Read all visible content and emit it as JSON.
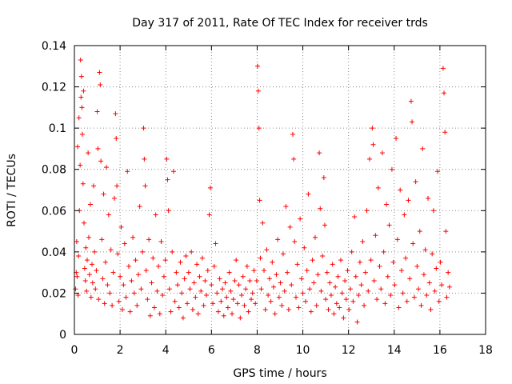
{
  "chart_data": {
    "type": "scatter",
    "title": "Day 317 of 2011, Rate Of TEC Index for receiver trds",
    "xlabel": "GPS time / hours",
    "ylabel": "ROTI / TECUs",
    "xlim": [
      0,
      18
    ],
    "ylim": [
      0,
      0.14
    ],
    "x_ticks": [
      0,
      2,
      4,
      6,
      8,
      10,
      12,
      14,
      16,
      18
    ],
    "y_ticks": [
      0,
      0.02,
      0.04,
      0.06,
      0.08,
      0.1,
      0.12,
      0.14
    ],
    "x_tick_labels": [
      "0",
      "2",
      "4",
      "6",
      "8",
      "10",
      "12",
      "14",
      "16",
      "18"
    ],
    "y_tick_labels": [
      "0",
      "0.02",
      "0.04",
      "0.06",
      "0.08",
      "0.1",
      "0.12",
      "0.14"
    ],
    "grid": true,
    "marker": "+",
    "color": "#ff0000",
    "series": [
      {
        "values": [
          [
            0.05,
            0.022
          ],
          [
            0.08,
            0.03
          ],
          [
            0.1,
            0.045
          ],
          [
            0.12,
            0.028
          ],
          [
            0.14,
            0.091
          ],
          [
            0.16,
            0.019
          ],
          [
            0.18,
            0.038
          ],
          [
            0.2,
            0.105
          ],
          [
            0.22,
            0.06
          ],
          [
            0.25,
            0.082
          ],
          [
            0.27,
            0.133
          ],
          [
            0.29,
            0.115
          ],
          [
            0.31,
            0.125
          ],
          [
            0.33,
            0.11
          ],
          [
            0.35,
            0.097
          ],
          [
            0.38,
            0.073
          ],
          [
            0.4,
            0.118
          ],
          [
            0.42,
            0.054
          ],
          [
            0.45,
            0.032
          ],
          [
            0.48,
            0.026
          ],
          [
            0.5,
            0.042
          ],
          [
            0.53,
            0.021
          ],
          [
            0.56,
            0.036
          ],
          [
            0.6,
            0.088
          ],
          [
            0.63,
            0.047
          ],
          [
            0.66,
            0.029
          ],
          [
            0.7,
            0.063
          ],
          [
            0.73,
            0.018
          ],
          [
            0.77,
            0.034
          ],
          [
            0.8,
            0.025
          ],
          [
            0.84,
            0.072
          ],
          [
            0.88,
            0.04
          ],
          [
            0.92,
            0.022
          ],
          [
            0.96,
            0.031
          ],
          [
            1.0,
            0.108
          ],
          [
            1.03,
            0.09
          ],
          [
            1.06,
            0.017
          ],
          [
            1.1,
            0.127
          ],
          [
            1.13,
            0.121
          ],
          [
            1.16,
            0.084
          ],
          [
            1.2,
            0.046
          ],
          [
            1.24,
            0.027
          ],
          [
            1.28,
            0.068
          ],
          [
            1.32,
            0.015
          ],
          [
            1.36,
            0.035
          ],
          [
            1.4,
            0.081
          ],
          [
            1.45,
            0.024
          ],
          [
            1.5,
            0.058
          ],
          [
            1.55,
            0.02
          ],
          [
            1.6,
            0.041
          ],
          [
            1.65,
            0.014
          ],
          [
            1.7,
            0.03
          ],
          [
            1.75,
            0.066
          ],
          [
            1.8,
            0.107
          ],
          [
            1.83,
            0.095
          ],
          [
            1.86,
            0.072
          ],
          [
            1.9,
            0.039
          ],
          [
            1.95,
            0.016
          ],
          [
            2.0,
            0.028
          ],
          [
            2.05,
            0.052
          ],
          [
            2.1,
            0.012
          ],
          [
            2.15,
            0.024
          ],
          [
            2.2,
            0.044
          ],
          [
            2.26,
            0.018
          ],
          [
            2.32,
            0.079
          ],
          [
            2.38,
            0.033
          ],
          [
            2.44,
            0.011
          ],
          [
            2.5,
            0.026
          ],
          [
            2.56,
            0.047
          ],
          [
            2.62,
            0.02
          ],
          [
            2.68,
            0.036
          ],
          [
            2.74,
            0.014
          ],
          [
            2.8,
            0.029
          ],
          [
            2.86,
            0.062
          ],
          [
            2.92,
            0.022
          ],
          [
            2.98,
            0.04
          ],
          [
            3.03,
            0.1
          ],
          [
            3.06,
            0.085
          ],
          [
            3.1,
            0.072
          ],
          [
            3.14,
            0.031
          ],
          [
            3.2,
            0.017
          ],
          [
            3.26,
            0.046
          ],
          [
            3.32,
            0.009
          ],
          [
            3.38,
            0.025
          ],
          [
            3.44,
            0.037
          ],
          [
            3.5,
            0.013
          ],
          [
            3.56,
            0.058
          ],
          [
            3.62,
            0.021
          ],
          [
            3.68,
            0.033
          ],
          [
            3.74,
            0.01
          ],
          [
            3.8,
            0.045
          ],
          [
            3.86,
            0.019
          ],
          [
            3.92,
            0.028
          ],
          [
            3.98,
            0.036
          ],
          [
            4.04,
            0.085
          ],
          [
            4.08,
            0.075
          ],
          [
            4.12,
            0.06
          ],
          [
            4.16,
            0.022
          ],
          [
            4.22,
            0.011
          ],
          [
            4.28,
            0.04
          ],
          [
            4.34,
            0.079
          ],
          [
            4.4,
            0.016
          ],
          [
            4.46,
            0.03
          ],
          [
            4.52,
            0.024
          ],
          [
            4.58,
            0.013
          ],
          [
            4.64,
            0.035
          ],
          [
            4.7,
            0.02
          ],
          [
            4.76,
            0.008
          ],
          [
            4.82,
            0.027
          ],
          [
            4.88,
            0.038
          ],
          [
            4.94,
            0.015
          ],
          [
            5.0,
            0.03
          ],
          [
            5.06,
            0.022
          ],
          [
            5.12,
            0.04
          ],
          [
            5.18,
            0.012
          ],
          [
            5.24,
            0.025
          ],
          [
            5.3,
            0.018
          ],
          [
            5.36,
            0.034
          ],
          [
            5.42,
            0.01
          ],
          [
            5.48,
            0.028
          ],
          [
            5.54,
            0.021
          ],
          [
            5.6,
            0.037
          ],
          [
            5.66,
            0.014
          ],
          [
            5.72,
            0.026
          ],
          [
            5.78,
            0.019
          ],
          [
            5.84,
            0.031
          ],
          [
            5.9,
            0.058
          ],
          [
            5.95,
            0.071
          ],
          [
            6.0,
            0.024
          ],
          [
            6.06,
            0.015
          ],
          [
            6.12,
            0.033
          ],
          [
            6.18,
            0.044
          ],
          [
            6.24,
            0.02
          ],
          [
            6.3,
            0.011
          ],
          [
            6.36,
            0.027
          ],
          [
            6.42,
            0.016
          ],
          [
            6.48,
            0.022
          ],
          [
            6.54,
            0.009
          ],
          [
            6.6,
            0.025
          ],
          [
            6.66,
            0.018
          ],
          [
            6.72,
            0.013
          ],
          [
            6.78,
            0.03
          ],
          [
            6.84,
            0.021
          ],
          [
            6.9,
            0.01
          ],
          [
            6.96,
            0.017
          ],
          [
            7.02,
            0.026
          ],
          [
            7.08,
            0.036
          ],
          [
            7.14,
            0.015
          ],
          [
            7.2,
            0.024
          ],
          [
            7.26,
            0.008
          ],
          [
            7.32,
            0.019
          ],
          [
            7.38,
            0.028
          ],
          [
            7.44,
            0.014
          ],
          [
            7.5,
            0.022
          ],
          [
            7.56,
            0.033
          ],
          [
            7.62,
            0.011
          ],
          [
            7.68,
            0.026
          ],
          [
            7.74,
            0.017
          ],
          [
            7.8,
            0.02
          ],
          [
            7.86,
            0.031
          ],
          [
            7.92,
            0.015
          ],
          [
            7.98,
            0.026
          ],
          [
            8.02,
            0.13
          ],
          [
            8.05,
            0.118
          ],
          [
            8.08,
            0.1
          ],
          [
            8.11,
            0.065
          ],
          [
            8.14,
            0.037
          ],
          [
            8.18,
            0.022
          ],
          [
            8.24,
            0.054
          ],
          [
            8.3,
            0.031
          ],
          [
            8.36,
            0.012
          ],
          [
            8.42,
            0.041
          ],
          [
            8.48,
            0.019
          ],
          [
            8.54,
            0.027
          ],
          [
            8.6,
            0.016
          ],
          [
            8.66,
            0.035
          ],
          [
            8.72,
            0.023
          ],
          [
            8.78,
            0.01
          ],
          [
            8.84,
            0.029
          ],
          [
            8.9,
            0.046
          ],
          [
            8.96,
            0.018
          ],
          [
            9.02,
            0.025
          ],
          [
            9.08,
            0.014
          ],
          [
            9.14,
            0.039
          ],
          [
            9.2,
            0.021
          ],
          [
            9.26,
            0.062
          ],
          [
            9.32,
            0.03
          ],
          [
            9.38,
            0.012
          ],
          [
            9.44,
            0.052
          ],
          [
            9.5,
            0.024
          ],
          [
            9.56,
            0.097
          ],
          [
            9.6,
            0.085
          ],
          [
            9.64,
            0.045
          ],
          [
            9.7,
            0.018
          ],
          [
            9.76,
            0.034
          ],
          [
            9.82,
            0.013
          ],
          [
            9.88,
            0.056
          ],
          [
            9.94,
            0.027
          ],
          [
            10.0,
            0.02
          ],
          [
            10.06,
            0.042
          ],
          [
            10.12,
            0.016
          ],
          [
            10.18,
            0.031
          ],
          [
            10.24,
            0.068
          ],
          [
            10.3,
            0.022
          ],
          [
            10.36,
            0.011
          ],
          [
            10.42,
            0.036
          ],
          [
            10.48,
            0.025
          ],
          [
            10.54,
            0.047
          ],
          [
            10.6,
            0.014
          ],
          [
            10.66,
            0.029
          ],
          [
            10.72,
            0.088
          ],
          [
            10.76,
            0.061
          ],
          [
            10.8,
            0.021
          ],
          [
            10.86,
            0.038
          ],
          [
            10.92,
            0.076
          ],
          [
            10.96,
            0.053
          ],
          [
            11.0,
            0.017
          ],
          [
            11.06,
            0.03
          ],
          [
            11.12,
            0.012
          ],
          [
            11.18,
            0.025
          ],
          [
            11.24,
            0.019
          ],
          [
            11.3,
            0.034
          ],
          [
            11.36,
            0.01
          ],
          [
            11.42,
            0.023
          ],
          [
            11.48,
            0.015
          ],
          [
            11.54,
            0.028
          ],
          [
            11.6,
            0.013
          ],
          [
            11.66,
            0.036
          ],
          [
            11.72,
            0.02
          ],
          [
            11.78,
            0.008
          ],
          [
            11.84,
            0.026
          ],
          [
            11.9,
            0.017
          ],
          [
            11.96,
            0.031
          ],
          [
            12.02,
            0.012
          ],
          [
            12.08,
            0.022
          ],
          [
            12.14,
            0.04
          ],
          [
            12.2,
            0.016
          ],
          [
            12.26,
            0.057
          ],
          [
            12.32,
            0.028
          ],
          [
            12.38,
            0.006
          ],
          [
            12.44,
            0.019
          ],
          [
            12.5,
            0.035
          ],
          [
            12.56,
            0.024
          ],
          [
            12.62,
            0.045
          ],
          [
            12.68,
            0.014
          ],
          [
            12.74,
            0.03
          ],
          [
            12.8,
            0.06
          ],
          [
            12.86,
            0.021
          ],
          [
            12.92,
            0.085
          ],
          [
            12.98,
            0.036
          ],
          [
            13.04,
            0.1
          ],
          [
            13.08,
            0.092
          ],
          [
            13.12,
            0.026
          ],
          [
            13.18,
            0.048
          ],
          [
            13.24,
            0.017
          ],
          [
            13.3,
            0.071
          ],
          [
            13.36,
            0.033
          ],
          [
            13.42,
            0.022
          ],
          [
            13.48,
            0.088
          ],
          [
            13.54,
            0.04
          ],
          [
            13.6,
            0.015
          ],
          [
            13.66,
            0.063
          ],
          [
            13.72,
            0.028
          ],
          [
            13.78,
            0.053
          ],
          [
            13.84,
            0.019
          ],
          [
            13.9,
            0.08
          ],
          [
            13.96,
            0.035
          ],
          [
            14.02,
            0.024
          ],
          [
            14.08,
            0.095
          ],
          [
            14.14,
            0.046
          ],
          [
            14.2,
            0.013
          ],
          [
            14.26,
            0.07
          ],
          [
            14.32,
            0.031
          ],
          [
            14.38,
            0.02
          ],
          [
            14.44,
            0.058
          ],
          [
            14.5,
            0.037
          ],
          [
            14.56,
            0.016
          ],
          [
            14.62,
            0.065
          ],
          [
            14.68,
            0.027
          ],
          [
            14.74,
            0.113
          ],
          [
            14.78,
            0.103
          ],
          [
            14.82,
            0.044
          ],
          [
            14.88,
            0.018
          ],
          [
            14.94,
            0.074
          ],
          [
            15.0,
            0.033
          ],
          [
            15.06,
            0.022
          ],
          [
            15.12,
            0.05
          ],
          [
            15.18,
            0.014
          ],
          [
            15.24,
            0.09
          ],
          [
            15.3,
            0.029
          ],
          [
            15.36,
            0.041
          ],
          [
            15.42,
            0.019
          ],
          [
            15.48,
            0.066
          ],
          [
            15.54,
            0.025
          ],
          [
            15.6,
            0.012
          ],
          [
            15.66,
            0.039
          ],
          [
            15.72,
            0.06
          ],
          [
            15.78,
            0.021
          ],
          [
            15.84,
            0.032
          ],
          [
            15.9,
            0.079
          ],
          [
            15.96,
            0.016
          ],
          [
            16.02,
            0.035
          ],
          [
            16.08,
            0.024
          ],
          [
            16.14,
            0.129
          ],
          [
            16.18,
            0.117
          ],
          [
            16.22,
            0.098
          ],
          [
            16.26,
            0.05
          ],
          [
            16.3,
            0.018
          ],
          [
            16.36,
            0.03
          ],
          [
            16.42,
            0.023
          ]
        ]
      }
    ]
  }
}
